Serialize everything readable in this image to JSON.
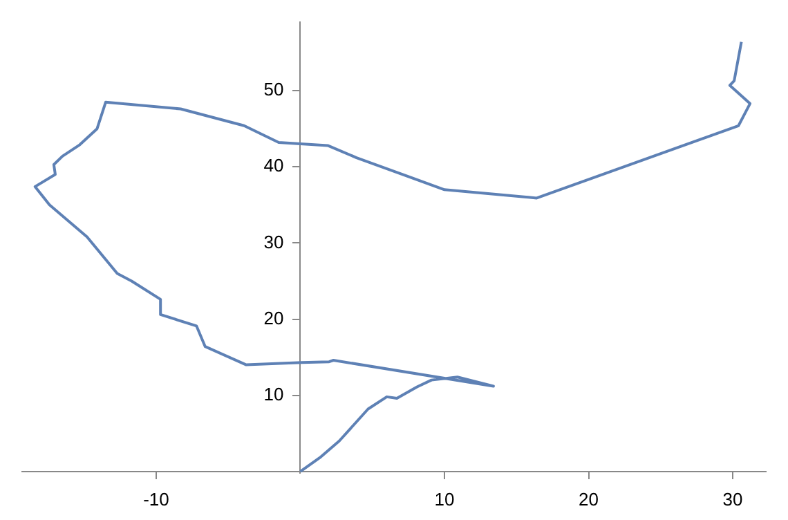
{
  "chart_data": {
    "type": "line",
    "marker": "none",
    "line_style": "solid",
    "grid": false,
    "legend": false,
    "xlim": [
      -19.3,
      32.3
    ],
    "ylim": [
      -0.2,
      59
    ],
    "xticks": [
      -10,
      10,
      20,
      30
    ],
    "yticks": [
      10,
      20,
      30,
      40,
      50
    ],
    "series": [
      {
        "color": "#5e81b5",
        "x": [
          0,
          1.35,
          2.7,
          4.7,
          6,
          6.7,
          8.1,
          9.1,
          10.9,
          13.4,
          2.3,
          2,
          0.1,
          -3.75,
          -6.6,
          -7.2,
          -9.7,
          -9.7,
          -11.7,
          -12.7,
          -14.8,
          -17.4,
          -18.4,
          -17,
          -17.1,
          -16.5,
          -15.3,
          -14.1,
          -13.5,
          -8.3,
          -3.9,
          -1.5,
          1.9,
          3.9,
          10,
          16.4,
          30.4,
          31.2,
          29.8,
          30.1,
          30.6
        ],
        "values": [
          0,
          1.8,
          4,
          8.2,
          9.8,
          9.6,
          11.1,
          12,
          12.4,
          11.2,
          14.6,
          14.4,
          14.3,
          14,
          16.4,
          19.1,
          20.6,
          22.6,
          25,
          26,
          30.8,
          35,
          37.4,
          39,
          40.3,
          41.4,
          42.9,
          45,
          48.5,
          47.6,
          45.4,
          43.2,
          42.8,
          41.2,
          37,
          35.9,
          45.4,
          48.3,
          50.7,
          51.3,
          56.4
        ]
      }
    ]
  }
}
